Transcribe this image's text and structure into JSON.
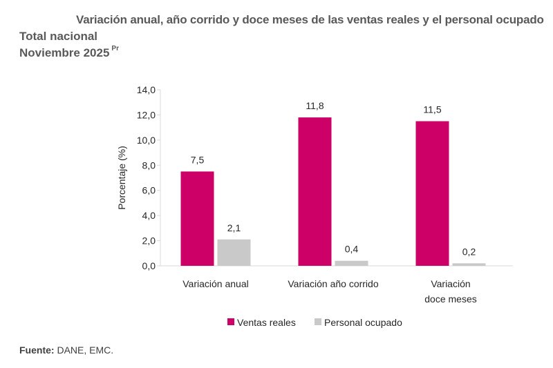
{
  "title": "Variación anual, año corrido y doce meses de las ventas reales y el personal ocupado",
  "subtitle1": "Total nacional",
  "subtitle2": "Noviembre 2025",
  "subtitle2_superscript": "Pr",
  "source_label": "Fuente:",
  "source_text": "DANE, EMC.",
  "chart_data": {
    "type": "bar",
    "ylabel": "Porcentaje (%)",
    "xlabel": "",
    "ylim": [
      0,
      14
    ],
    "yticks": [
      "0,0",
      "2,0",
      "4,0",
      "6,0",
      "8,0",
      "10,0",
      "12,0",
      "14,0"
    ],
    "grid": false,
    "legend_position": "bottom",
    "categories": [
      [
        "Variación anual"
      ],
      [
        "Variación año corrido"
      ],
      [
        "Variación",
        "doce meses"
      ]
    ],
    "series": [
      {
        "name": "Ventas reales",
        "color": "#CC0066",
        "values": [
          7.5,
          11.8,
          11.5
        ],
        "labels": [
          "7,5",
          "11,8",
          "11,5"
        ]
      },
      {
        "name": "Personal ocupado",
        "color": "#C9C9C9",
        "values": [
          2.1,
          0.4,
          0.2
        ],
        "labels": [
          "2,1",
          "0,4",
          "0,2"
        ]
      }
    ]
  }
}
